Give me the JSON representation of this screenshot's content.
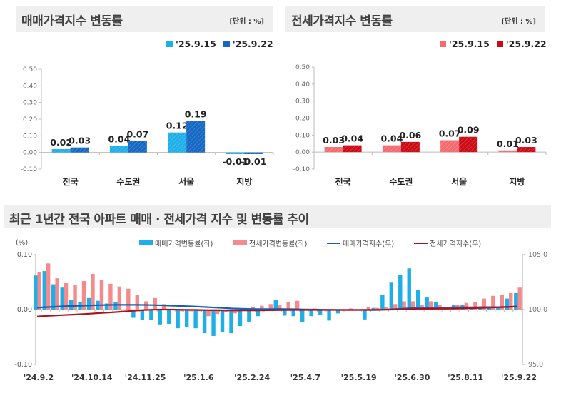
{
  "colors": {
    "sale_light": "#1eaee8",
    "sale_dark": "#1468c4",
    "jeonse_light": "#f46a6e",
    "jeonse_dark": "#cc0a14",
    "sale_index_line": "#1a5fb4",
    "jeonse_index_line": "#b01218"
  },
  "chart_data": [
    {
      "type": "bar",
      "title": "매매가격지수 변동률",
      "unit_label": "[단위 : %]",
      "categories": [
        "전국",
        "수도권",
        "서울",
        "지방"
      ],
      "series": [
        {
          "name": "'25.9.15",
          "values": [
            0.02,
            0.04,
            0.12,
            -0.01
          ],
          "labels": [
            "0.02",
            "0.04",
            "0.12",
            "-0.01"
          ]
        },
        {
          "name": "'25.9.22",
          "values": [
            0.03,
            0.07,
            0.19,
            -0.01
          ],
          "labels": [
            "0.03",
            "0.07",
            "0.19",
            "-0.01"
          ]
        }
      ],
      "ylim": [
        -0.1,
        0.5
      ],
      "yticks": [
        "0.50",
        "0.40",
        "0.30",
        "0.20",
        "0.10",
        "0.00",
        "-0.10"
      ],
      "legend": "top-right"
    },
    {
      "type": "bar",
      "title": "전세가격지수 변동률",
      "unit_label": "[단위 : %]",
      "categories": [
        "전국",
        "수도권",
        "서울",
        "지방"
      ],
      "series": [
        {
          "name": "'25.9.15",
          "values": [
            0.03,
            0.04,
            0.07,
            0.01
          ],
          "labels": [
            "0.03",
            "0.04",
            "0.07",
            "0.01"
          ]
        },
        {
          "name": "'25.9.22",
          "values": [
            0.04,
            0.06,
            0.09,
            0.03
          ],
          "labels": [
            "0.04",
            "0.06",
            "0.09",
            "0.03"
          ]
        }
      ],
      "ylim": [
        -0.1,
        0.5
      ],
      "yticks": [
        "0.50",
        "0.40",
        "0.30",
        "0.20",
        "0.10",
        "0.00",
        "-0.10"
      ],
      "legend": "top-right"
    },
    {
      "type": "bar+line",
      "title": "최근 1년간 전국 아파트 매매 · 전세가격 지수 및 변동률 추이",
      "ylabel_left": "(%)",
      "ylim_left": [
        -0.1,
        0.1
      ],
      "yticks_left": [
        "0.10",
        "0.00",
        "-0.10"
      ],
      "ylim_right": [
        95.0,
        105.0
      ],
      "yticks_right": [
        "105.0",
        "100.0",
        "95.0"
      ],
      "xtick_labels": [
        "'24.9.2",
        "'24.10.14",
        "'24.11.25",
        "'25.1.6",
        "'25.2.24",
        "'25.4.7",
        "'25.5.19",
        "'25.6.30",
        "'25.8.11",
        "'25.9.22"
      ],
      "legend": "top",
      "series": [
        {
          "name": "매매가격변동률(좌)",
          "type": "bar",
          "axis": "left",
          "values": [
            0.062,
            0.07,
            0.046,
            0.04,
            0.017,
            0.014,
            0.021,
            0.016,
            0.011,
            0.013,
            0.0,
            -0.015,
            -0.019,
            -0.019,
            -0.027,
            -0.026,
            -0.034,
            -0.032,
            -0.034,
            -0.043,
            -0.048,
            -0.041,
            -0.043,
            -0.03,
            -0.022,
            -0.012,
            0.0,
            0.017,
            -0.011,
            -0.012,
            -0.022,
            -0.012,
            -0.009,
            -0.02,
            -0.007,
            0.0,
            -0.002,
            -0.018,
            0.003,
            0.027,
            0.049,
            0.063,
            0.075,
            0.036,
            0.022,
            0.013,
            0.004,
            0.009,
            0.009,
            0.005,
            0.003,
            0.003,
            0.003,
            0.02,
            0.03
          ]
        },
        {
          "name": "전세가격변동률(좌)",
          "type": "bar",
          "axis": "left",
          "values": [
            0.068,
            0.084,
            0.057,
            0.048,
            0.045,
            0.052,
            0.065,
            0.054,
            0.047,
            0.042,
            0.038,
            0.026,
            0.015,
            0.021,
            0.01,
            0.0,
            -0.003,
            -0.003,
            -0.003,
            -0.012,
            -0.008,
            -0.004,
            -0.007,
            -0.002,
            0.005,
            0.007,
            0.01,
            0.009,
            0.014,
            0.016,
            0.0,
            0.002,
            0.0,
            0.0,
            0.0,
            0.002,
            -0.002,
            0.004,
            0.003,
            0.005,
            0.01,
            0.015,
            0.015,
            0.008,
            0.015,
            0.008,
            0.005,
            0.009,
            0.012,
            0.014,
            0.02,
            0.025,
            0.027,
            0.03,
            0.04
          ]
        },
        {
          "name": "매매가격지수(우)",
          "type": "line",
          "axis": "right",
          "values": [
            100.17,
            100.22,
            100.26,
            100.3,
            100.33,
            100.35,
            100.38,
            100.4,
            100.42,
            100.43,
            100.43,
            100.43,
            100.42,
            100.41,
            100.39,
            100.36,
            100.33,
            100.3,
            100.27,
            100.23,
            100.18,
            100.14,
            100.1,
            100.07,
            100.05,
            100.04,
            100.04,
            100.05,
            100.04,
            100.03,
            100.01,
            100.0,
            99.99,
            99.98,
            99.97,
            99.97,
            99.97,
            99.96,
            99.96,
            99.99,
            100.03,
            100.08,
            100.13,
            100.16,
            100.18,
            100.19,
            100.19,
            100.2,
            100.21,
            100.21,
            100.22,
            100.22,
            100.23,
            100.25,
            100.28
          ]
        },
        {
          "name": "전세가격지수(우)",
          "type": "line",
          "axis": "right",
          "values": [
            99.37,
            99.42,
            99.46,
            99.5,
            99.54,
            99.58,
            99.63,
            99.68,
            99.73,
            99.78,
            99.84,
            99.9,
            99.96,
            99.99,
            100.0,
            100.0,
            99.99,
            99.98,
            99.97,
            99.95,
            99.94,
            99.93,
            99.92,
            99.92,
            99.92,
            99.93,
            99.94,
            99.95,
            99.96,
            99.97,
            99.97,
            99.97,
            99.97,
            99.97,
            99.97,
            99.97,
            99.97,
            99.98,
            99.98,
            99.99,
            100.0,
            100.02,
            100.04,
            100.05,
            100.07,
            100.08,
            100.09,
            100.1,
            100.12,
            100.13,
            100.15,
            100.18,
            100.21,
            100.24,
            100.28
          ]
        }
      ]
    }
  ]
}
